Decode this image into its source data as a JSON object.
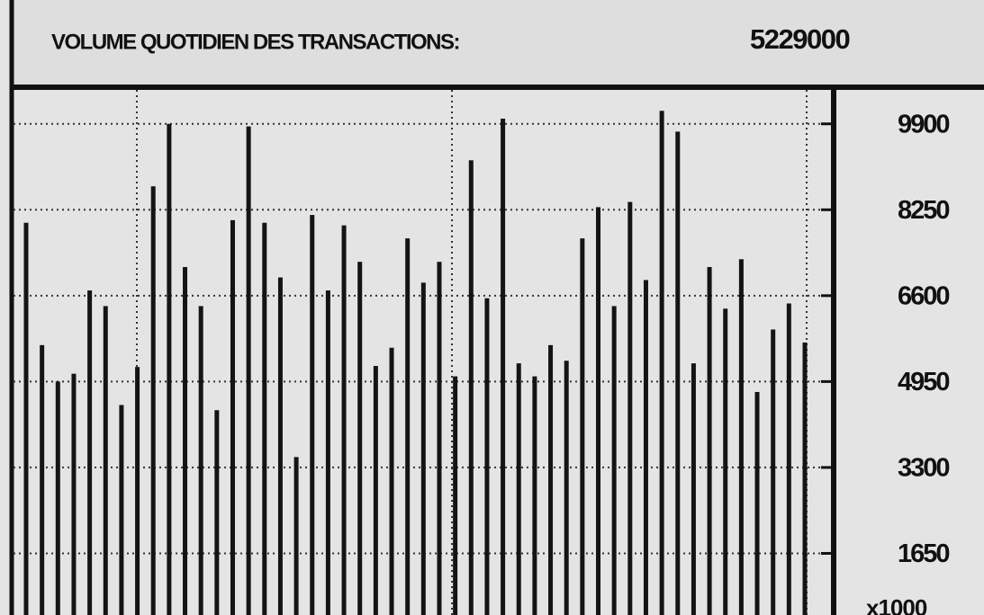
{
  "chart_data": {
    "type": "bar",
    "title": "VOLUME QUOTIDIEN DES TRANSACTIONS:",
    "total": 5229000,
    "y_unit_label": "x1000",
    "color": "#141414",
    "values": [
      8000,
      5650,
      4950,
      5100,
      6700,
      6400,
      4500,
      5230,
      8700,
      9900,
      7150,
      6400,
      4400,
      8050,
      9850,
      8000,
      6950,
      3500,
      8150,
      6700,
      7950,
      7250,
      5250,
      5600,
      7700,
      6850,
      7250,
      5050,
      9200,
      6550,
      10000,
      5300,
      5050,
      5650,
      5350,
      7700,
      8300,
      6400,
      8400,
      6900,
      10150,
      9750,
      5300,
      7150,
      6350,
      7300,
      4750,
      5950,
      6450,
      5700
    ],
    "ylim": [
      0,
      10500
    ],
    "yticks": [
      1650,
      3300,
      4950,
      6600,
      8250,
      9900
    ],
    "grid": true
  }
}
